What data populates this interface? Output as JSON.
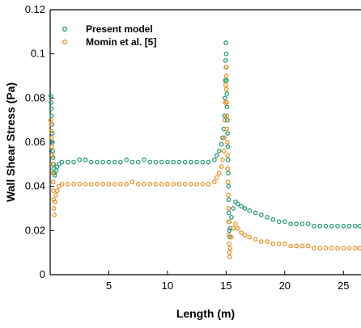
{
  "chart_data": {
    "type": "scatter",
    "xlabel": "Length (m)",
    "ylabel": "Wall Shear Stress (Pa)",
    "xlim": [
      0,
      26.5
    ],
    "ylim": [
      0,
      0.12
    ],
    "x_ticks": [
      "5",
      "10",
      "15",
      "20",
      "25"
    ],
    "x_tick_values": [
      5,
      10,
      15,
      20,
      25
    ],
    "y_ticks": [
      "0",
      "0.02",
      "0.04",
      "0.06",
      "0.08",
      "0.1",
      "0.12"
    ],
    "y_tick_values": [
      0,
      0.02,
      0.04,
      0.06,
      0.08,
      0.1,
      0.12
    ],
    "grid": false,
    "legend_position": "top-left",
    "series": [
      {
        "name": "Present model",
        "color": "#2e9e74",
        "points": [
          [
            0.05,
            0.081
          ],
          [
            0.08,
            0.078
          ],
          [
            0.1,
            0.075
          ],
          [
            0.12,
            0.072
          ],
          [
            0.15,
            0.068
          ],
          [
            0.18,
            0.064
          ],
          [
            0.2,
            0.06
          ],
          [
            0.22,
            0.056
          ],
          [
            0.25,
            0.053
          ],
          [
            0.28,
            0.05
          ],
          [
            0.3,
            0.048
          ],
          [
            0.35,
            0.046
          ],
          [
            0.4,
            0.045
          ],
          [
            0.5,
            0.047
          ],
          [
            0.6,
            0.049
          ],
          [
            0.75,
            0.05
          ],
          [
            1.0,
            0.051
          ],
          [
            1.5,
            0.051
          ],
          [
            2.0,
            0.051
          ],
          [
            2.5,
            0.052
          ],
          [
            3.0,
            0.052
          ],
          [
            3.5,
            0.051
          ],
          [
            4.0,
            0.051
          ],
          [
            4.5,
            0.051
          ],
          [
            5.0,
            0.051
          ],
          [
            5.5,
            0.051
          ],
          [
            6.0,
            0.051
          ],
          [
            6.5,
            0.052
          ],
          [
            7.0,
            0.051
          ],
          [
            7.5,
            0.051
          ],
          [
            8.0,
            0.052
          ],
          [
            8.5,
            0.051
          ],
          [
            9.0,
            0.051
          ],
          [
            9.5,
            0.051
          ],
          [
            10.0,
            0.051
          ],
          [
            10.5,
            0.051
          ],
          [
            11.0,
            0.051
          ],
          [
            11.5,
            0.051
          ],
          [
            12.0,
            0.051
          ],
          [
            12.5,
            0.051
          ],
          [
            13.0,
            0.051
          ],
          [
            13.5,
            0.051
          ],
          [
            14.0,
            0.052
          ],
          [
            14.2,
            0.054
          ],
          [
            14.4,
            0.056
          ],
          [
            14.6,
            0.059
          ],
          [
            14.7,
            0.062
          ],
          [
            14.8,
            0.066
          ],
          [
            14.85,
            0.072
          ],
          [
            14.9,
            0.08
          ],
          [
            14.93,
            0.088
          ],
          [
            14.96,
            0.097
          ],
          [
            14.98,
            0.105
          ],
          [
            15.0,
            0.1
          ],
          [
            15.02,
            0.094
          ],
          [
            15.04,
            0.088
          ],
          [
            15.06,
            0.082
          ],
          [
            15.08,
            0.076
          ],
          [
            15.1,
            0.07
          ],
          [
            15.12,
            0.064
          ],
          [
            15.14,
            0.058
          ],
          [
            15.16,
            0.052
          ],
          [
            15.18,
            0.046
          ],
          [
            15.2,
            0.04
          ],
          [
            15.22,
            0.034
          ],
          [
            15.24,
            0.028
          ],
          [
            15.26,
            0.024
          ],
          [
            15.28,
            0.02
          ],
          [
            15.3,
            0.017
          ],
          [
            15.35,
            0.021
          ],
          [
            15.45,
            0.026
          ],
          [
            15.6,
            0.03
          ],
          [
            15.8,
            0.033
          ],
          [
            16.0,
            0.032
          ],
          [
            16.3,
            0.031
          ],
          [
            16.6,
            0.03
          ],
          [
            17.0,
            0.029
          ],
          [
            17.5,
            0.028
          ],
          [
            18.0,
            0.027
          ],
          [
            18.5,
            0.026
          ],
          [
            19.0,
            0.025
          ],
          [
            19.5,
            0.024
          ],
          [
            20.0,
            0.024
          ],
          [
            20.5,
            0.023
          ],
          [
            21.0,
            0.023
          ],
          [
            21.5,
            0.023
          ],
          [
            22.0,
            0.023
          ],
          [
            22.5,
            0.022
          ],
          [
            23.0,
            0.022
          ],
          [
            23.5,
            0.022
          ],
          [
            24.0,
            0.022
          ],
          [
            24.5,
            0.022
          ],
          [
            25.0,
            0.022
          ],
          [
            25.5,
            0.022
          ],
          [
            26.0,
            0.022
          ],
          [
            26.4,
            0.022
          ]
        ]
      },
      {
        "name": "Momin et al. [5]",
        "color": "#e8962e",
        "points": [
          [
            0.05,
            0.07
          ],
          [
            0.08,
            0.068
          ],
          [
            0.1,
            0.065
          ],
          [
            0.12,
            0.062
          ],
          [
            0.15,
            0.058
          ],
          [
            0.18,
            0.054
          ],
          [
            0.2,
            0.05
          ],
          [
            0.22,
            0.046
          ],
          [
            0.25,
            0.042
          ],
          [
            0.28,
            0.038
          ],
          [
            0.3,
            0.034
          ],
          [
            0.32,
            0.03
          ],
          [
            0.35,
            0.027
          ],
          [
            0.4,
            0.033
          ],
          [
            0.5,
            0.036
          ],
          [
            0.6,
            0.038
          ],
          [
            0.75,
            0.04
          ],
          [
            1.0,
            0.041
          ],
          [
            1.5,
            0.041
          ],
          [
            2.0,
            0.041
          ],
          [
            2.5,
            0.041
          ],
          [
            3.0,
            0.041
          ],
          [
            3.5,
            0.041
          ],
          [
            4.0,
            0.041
          ],
          [
            4.5,
            0.041
          ],
          [
            5.0,
            0.041
          ],
          [
            5.5,
            0.041
          ],
          [
            6.0,
            0.041
          ],
          [
            6.5,
            0.041
          ],
          [
            7.0,
            0.042
          ],
          [
            7.5,
            0.041
          ],
          [
            8.0,
            0.041
          ],
          [
            8.5,
            0.041
          ],
          [
            9.0,
            0.041
          ],
          [
            9.5,
            0.041
          ],
          [
            10.0,
            0.041
          ],
          [
            10.5,
            0.041
          ],
          [
            11.0,
            0.041
          ],
          [
            11.5,
            0.041
          ],
          [
            12.0,
            0.041
          ],
          [
            12.5,
            0.041
          ],
          [
            13.0,
            0.041
          ],
          [
            13.5,
            0.041
          ],
          [
            14.0,
            0.042
          ],
          [
            14.2,
            0.044
          ],
          [
            14.4,
            0.046
          ],
          [
            14.6,
            0.049
          ],
          [
            14.7,
            0.052
          ],
          [
            14.8,
            0.056
          ],
          [
            14.85,
            0.062
          ],
          [
            14.9,
            0.07
          ],
          [
            14.93,
            0.078
          ],
          [
            14.96,
            0.086
          ],
          [
            14.98,
            0.094
          ],
          [
            15.0,
            0.09
          ],
          [
            15.02,
            0.084
          ],
          [
            15.04,
            0.078
          ],
          [
            15.06,
            0.072
          ],
          [
            15.08,
            0.066
          ],
          [
            15.1,
            0.06
          ],
          [
            15.12,
            0.054
          ],
          [
            15.14,
            0.048
          ],
          [
            15.16,
            0.042
          ],
          [
            15.18,
            0.036
          ],
          [
            15.2,
            0.03
          ],
          [
            15.22,
            0.024
          ],
          [
            15.24,
            0.018
          ],
          [
            15.26,
            0.014
          ],
          [
            15.28,
            0.01
          ],
          [
            15.3,
            0.008
          ],
          [
            15.35,
            0.012
          ],
          [
            15.45,
            0.017
          ],
          [
            15.6,
            0.021
          ],
          [
            15.8,
            0.023
          ],
          [
            16.0,
            0.021
          ],
          [
            16.3,
            0.019
          ],
          [
            16.6,
            0.018
          ],
          [
            17.0,
            0.017
          ],
          [
            17.5,
            0.016
          ],
          [
            18.0,
            0.015
          ],
          [
            18.5,
            0.015
          ],
          [
            19.0,
            0.014
          ],
          [
            19.5,
            0.014
          ],
          [
            20.0,
            0.014
          ],
          [
            20.5,
            0.013
          ],
          [
            21.0,
            0.013
          ],
          [
            21.5,
            0.013
          ],
          [
            22.0,
            0.013
          ],
          [
            22.5,
            0.012
          ],
          [
            23.0,
            0.012
          ],
          [
            23.5,
            0.012
          ],
          [
            24.0,
            0.012
          ],
          [
            24.5,
            0.012
          ],
          [
            25.0,
            0.012
          ],
          [
            25.5,
            0.012
          ],
          [
            26.0,
            0.012
          ],
          [
            26.4,
            0.012
          ]
        ]
      }
    ]
  }
}
